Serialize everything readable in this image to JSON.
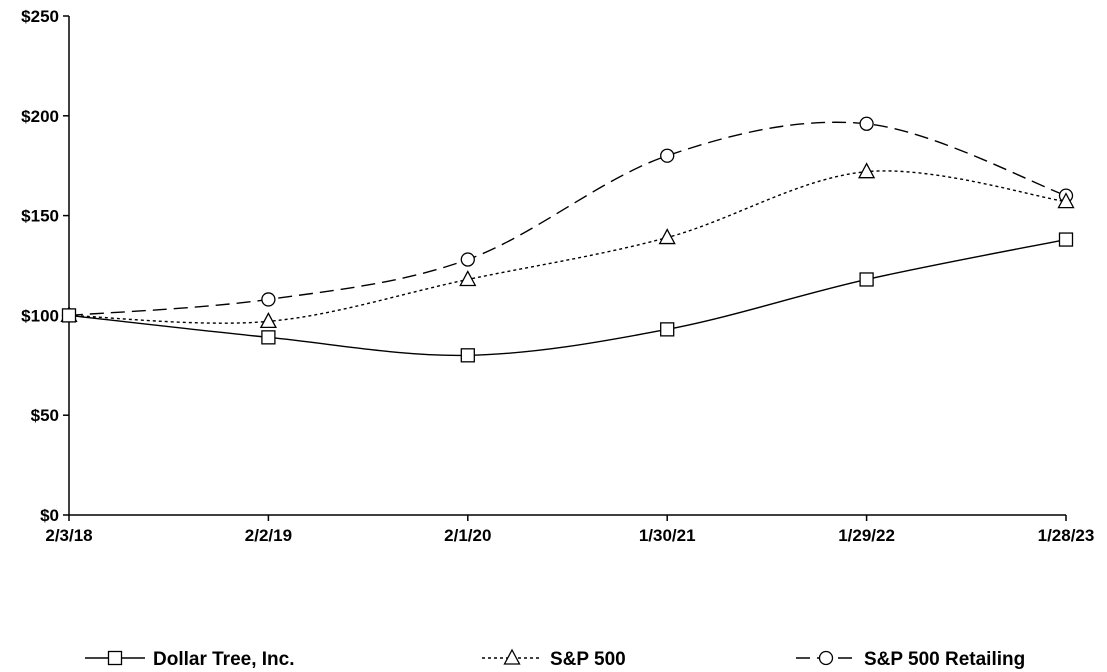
{
  "chart_data": {
    "type": "line",
    "title": "",
    "xlabel": "",
    "ylabel": "",
    "categories": [
      "2/3/18",
      "2/2/19",
      "2/1/20",
      "1/30/21",
      "1/29/22",
      "1/28/23"
    ],
    "y_ticks": [
      "$0",
      "$50",
      "$100",
      "$150",
      "$200",
      "$250"
    ],
    "ylim": [
      0,
      250
    ],
    "grid": false,
    "legend_position": "bottom",
    "series": [
      {
        "name": "Dollar Tree, Inc.",
        "marker": "square",
        "dash": "solid",
        "values": [
          100,
          89,
          80,
          93,
          118,
          138
        ]
      },
      {
        "name": "S&P 500",
        "marker": "triangle",
        "dash": "dotted",
        "values": [
          100,
          97,
          118,
          139,
          172,
          157
        ]
      },
      {
        "name": "S&P 500 Retailing",
        "marker": "circle",
        "dash": "dashed",
        "values": [
          100,
          108,
          128,
          180,
          196,
          160
        ]
      }
    ]
  }
}
